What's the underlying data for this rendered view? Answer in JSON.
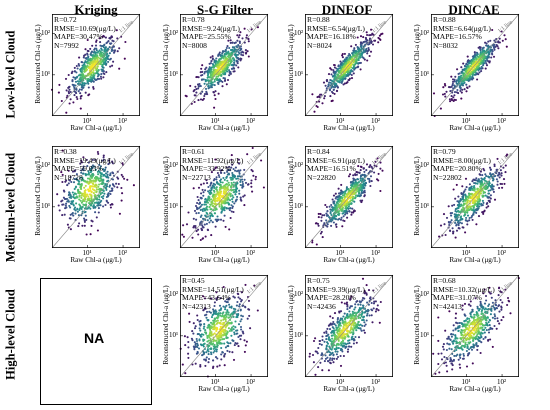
{
  "columns": [
    "Kriging",
    "S-G Filter",
    "DINEOF",
    "DINCAE"
  ],
  "rows": [
    "Low-level Cloud",
    "Medium-level Cloud",
    "High-level Cloud"
  ],
  "na_text": "NA",
  "x_label": "Raw Chl-a (μg/L)",
  "y_label": "Reconstructed Chl-a (μg/L)",
  "line_label": "1:1 line",
  "colormap": [
    "#440154",
    "#3b528b",
    "#21918c",
    "#5ec962",
    "#fde725"
  ],
  "chart_data": [
    {
      "type": "scatter",
      "row": "Low-level Cloud",
      "method": "Kriging",
      "stats": {
        "r": "R=0.72",
        "rmse": "RMSE=10.69(μg/L)",
        "mape": "MAPE=30.47%",
        "n": "N=7992"
      },
      "r_value": 0.72,
      "xlim": [
        1,
        300
      ],
      "ylim": [
        1,
        300
      ],
      "log_scale": true,
      "x_ticks": [
        "10¹",
        "10²"
      ],
      "y_ticks": [
        "10¹",
        "10²"
      ],
      "center_log": [
        1.15,
        1.2
      ],
      "spread_log": 0.33
    },
    {
      "type": "scatter",
      "row": "Low-level Cloud",
      "method": "S-G Filter",
      "stats": {
        "r": "R=0.78",
        "rmse": "RMSE=9.24(μg/L)",
        "mape": "MAPE=25.55%",
        "n": "N=8008"
      },
      "r_value": 0.78,
      "xlim": [
        1,
        300
      ],
      "ylim": [
        1,
        300
      ],
      "log_scale": true,
      "x_ticks": [
        "10¹",
        "10²"
      ],
      "y_ticks": [
        "10¹",
        "10²"
      ],
      "center_log": [
        1.15,
        1.18
      ],
      "spread_log": 0.33
    },
    {
      "type": "scatter",
      "row": "Low-level Cloud",
      "method": "DINEOF",
      "stats": {
        "r": "R=0.88",
        "rmse": "RMSE=6.54(μg/L)",
        "mape": "MAPE=16.18%",
        "n": "N=8024"
      },
      "r_value": 0.88,
      "xlim": [
        1,
        300
      ],
      "ylim": [
        1,
        300
      ],
      "log_scale": true,
      "x_ticks": [
        "10¹",
        "10²"
      ],
      "y_ticks": [
        "10¹",
        "10²"
      ],
      "center_log": [
        1.2,
        1.2
      ],
      "spread_log": 0.33
    },
    {
      "type": "scatter",
      "row": "Low-level Cloud",
      "method": "DINCAE",
      "stats": {
        "r": "R=0.88",
        "rmse": "RMSE=6.64(μg/L)",
        "mape": "MAPE=16.57%",
        "n": "N=8032"
      },
      "r_value": 0.88,
      "xlim": [
        1,
        300
      ],
      "ylim": [
        1,
        300
      ],
      "log_scale": true,
      "x_ticks": [
        "10¹",
        "10²"
      ],
      "y_ticks": [
        "10¹",
        "10²"
      ],
      "center_log": [
        1.2,
        1.2
      ],
      "spread_log": 0.33
    },
    {
      "type": "scatter",
      "row": "Medium-level Cloud",
      "method": "Kriging",
      "stats": {
        "r": "R=0.38",
        "rmse": "RMSE=19.43(μg/L)",
        "mape": "MAPE=59.03%",
        "n": "N=18728"
      },
      "r_value": 0.38,
      "xlim": [
        1,
        300
      ],
      "ylim": [
        1,
        300
      ],
      "log_scale": true,
      "x_ticks": [
        "10¹",
        "10²"
      ],
      "y_ticks": [
        "10¹",
        "10²"
      ],
      "center_log": [
        1.05,
        1.4
      ],
      "spread_log": 0.38
    },
    {
      "type": "scatter",
      "row": "Medium-level Cloud",
      "method": "S-G Filter",
      "stats": {
        "r": "R=0.61",
        "rmse": "RMSE=11.92(μg/L)",
        "mape": "MAPE=33.92%",
        "n": "N=22713"
      },
      "r_value": 0.61,
      "xlim": [
        1,
        300
      ],
      "ylim": [
        1,
        300
      ],
      "log_scale": true,
      "x_ticks": [
        "10¹",
        "10²"
      ],
      "y_ticks": [
        "10¹",
        "10²"
      ],
      "center_log": [
        1.15,
        1.25
      ],
      "spread_log": 0.38
    },
    {
      "type": "scatter",
      "row": "Medium-level Cloud",
      "method": "DINEOF",
      "stats": {
        "r": "R=0.84",
        "rmse": "RMSE=6.91(μg/L)",
        "mape": "MAPE=16.51%",
        "n": "N=22820"
      },
      "r_value": 0.84,
      "xlim": [
        1,
        300
      ],
      "ylim": [
        1,
        300
      ],
      "log_scale": true,
      "x_ticks": [
        "10¹",
        "10²"
      ],
      "y_ticks": [
        "10¹",
        "10²"
      ],
      "center_log": [
        1.2,
        1.2
      ],
      "spread_log": 0.36
    },
    {
      "type": "scatter",
      "row": "Medium-level Cloud",
      "method": "DINCAE",
      "stats": {
        "r": "R=0.79",
        "rmse": "RMSE=8.00(μg/L)",
        "mape": "MAPE=20.80%",
        "n": "N=22802"
      },
      "r_value": 0.79,
      "xlim": [
        1,
        300
      ],
      "ylim": [
        1,
        300
      ],
      "log_scale": true,
      "x_ticks": [
        "10¹",
        "10²"
      ],
      "y_ticks": [
        "10¹",
        "10²"
      ],
      "center_log": [
        1.2,
        1.2
      ],
      "spread_log": 0.38
    },
    {
      "type": "scatter",
      "row": "High-level Cloud",
      "method": "S-G Filter",
      "stats": {
        "r": "R=0.45",
        "rmse": "RMSE=14.51(μg/L)",
        "mape": "MAPE=43.64%",
        "n": "N=42313"
      },
      "r_value": 0.45,
      "xlim": [
        1,
        300
      ],
      "ylim": [
        1,
        300
      ],
      "log_scale": true,
      "x_ticks": [
        "10¹",
        "10²"
      ],
      "y_ticks": [
        "10¹",
        "10²"
      ],
      "center_log": [
        1.1,
        1.15
      ],
      "spread_log": 0.4
    },
    {
      "type": "scatter",
      "row": "High-level Cloud",
      "method": "DINEOF",
      "stats": {
        "r": "R=0.75",
        "rmse": "RMSE=9.39(μg/L)",
        "mape": "MAPE=28.20%",
        "n": "N=42436"
      },
      "r_value": 0.75,
      "xlim": [
        1,
        300
      ],
      "ylim": [
        1,
        300
      ],
      "log_scale": true,
      "x_ticks": [
        "10¹",
        "10²"
      ],
      "y_ticks": [
        "10¹",
        "10²"
      ],
      "center_log": [
        1.15,
        1.15
      ],
      "spread_log": 0.4
    },
    {
      "type": "scatter",
      "row": "High-level Cloud",
      "method": "DINCAE",
      "stats": {
        "r": "R=0.68",
        "rmse": "RMSE=10.32(μg/L)",
        "mape": "MAPE=31.07%",
        "n": "N=42413"
      },
      "r_value": 0.68,
      "xlim": [
        1,
        300
      ],
      "ylim": [
        1,
        300
      ],
      "log_scale": true,
      "x_ticks": [
        "10¹",
        "10²"
      ],
      "y_ticks": [
        "10¹",
        "10²"
      ],
      "center_log": [
        1.15,
        1.15
      ],
      "spread_log": 0.4
    }
  ]
}
